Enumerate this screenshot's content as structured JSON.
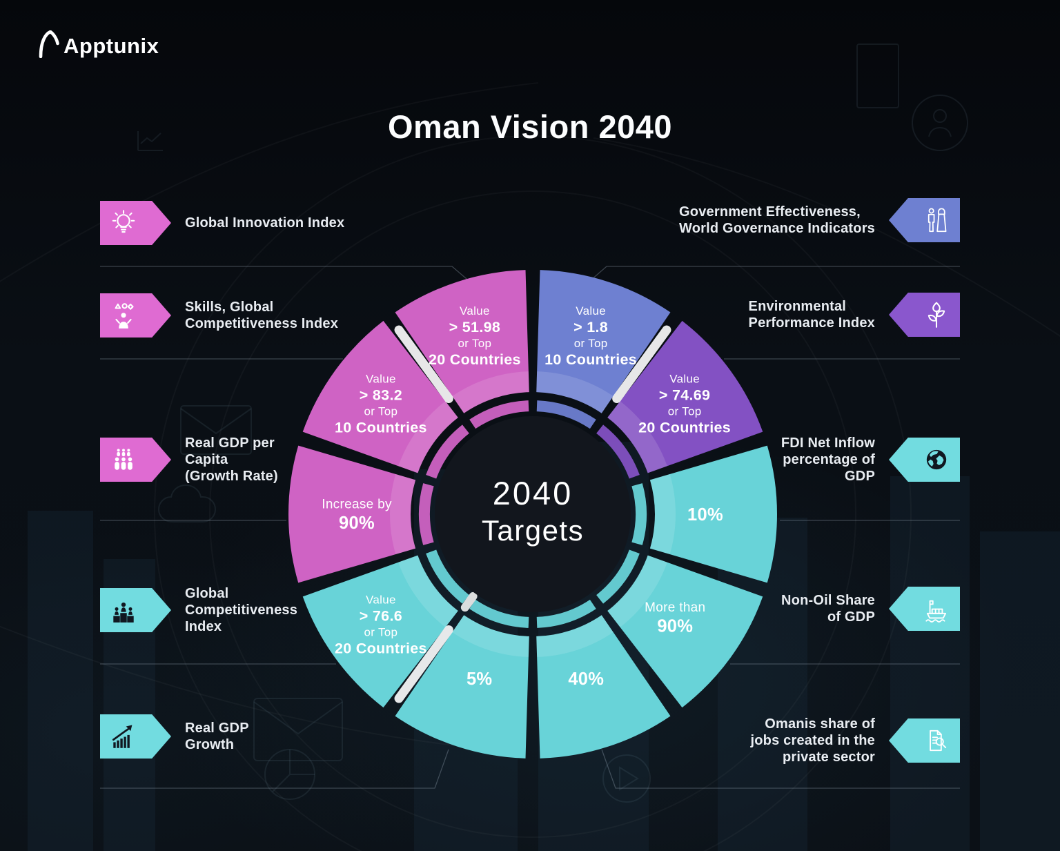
{
  "brand": {
    "logo_text": "Apptunix"
  },
  "title": "Oman Vision 2040",
  "center": {
    "line1": "2040",
    "line2": "Targets"
  },
  "colors": {
    "pink_segment": "#CF63C4",
    "teal_segment": "#68D3D8",
    "blue_segment": "#6E80D1",
    "purple_segment": "#8351C3",
    "badge_pink": "#DF6BD2",
    "badge_teal": "#72DCE0",
    "badge_blue": "#6E80D1",
    "badge_purple": "#8A57CD",
    "background": "#0A0F15",
    "center_circle": "#12161D"
  },
  "indicators": {
    "left": [
      {
        "label": "Global Innovation Index",
        "icon": "lightbulb-icon",
        "color": "#DF6BD2",
        "icon_style": "light"
      },
      {
        "label": "Skills, Global\nCompetitiveness Index",
        "icon": "skills-shapes-icon",
        "color": "#DF6BD2",
        "icon_style": "light"
      },
      {
        "label": "Real GDP per\nCapita\n(Growth Rate)",
        "icon": "people-group-icon",
        "color": "#DF6BD2",
        "icon_style": "light"
      },
      {
        "label": "Global\nCompetitiveness\nIndex",
        "icon": "podium-people-icon",
        "color": "#72DCE0",
        "icon_style": "dark"
      },
      {
        "label": "Real GDP\nGrowth",
        "icon": "growth-chart-icon",
        "color": "#72DCE0",
        "icon_style": "dark"
      }
    ],
    "right": [
      {
        "label": "Government Effectiveness,\nWorld Governance Indicators",
        "icon": "omani-couple-icon",
        "color": "#6E80D1",
        "icon_style": "light"
      },
      {
        "label": "Environmental\nPerformance Index",
        "icon": "plant-icon",
        "color": "#8A57CD",
        "icon_style": "light"
      },
      {
        "label": "FDI Net Inflow\npercentage of\nGDP",
        "icon": "globe-icon",
        "color": "#72DCE0",
        "icon_style": "dark"
      },
      {
        "label": "Non-Oil Share\nof GDP",
        "icon": "ship-icon",
        "color": "#72DCE0",
        "icon_style": "light"
      },
      {
        "label": "Omanis share of\njobs created in the\nprivate sector",
        "icon": "document-search-icon",
        "color": "#72DCE0",
        "icon_style": "light"
      }
    ]
  },
  "chart_data": {
    "type": "pie",
    "subtype": "donut-ring",
    "title": "2040 Targets",
    "legend_position": "around",
    "segments": [
      {
        "indicator": "Government Effectiveness, World Governance Indicators",
        "color": "#6E80D1",
        "start_angle": 0,
        "end_angle": 36,
        "lines": [
          {
            "text": "Value",
            "style": "small"
          },
          {
            "text": "> 1.8",
            "style": "big"
          },
          {
            "text": "or Top",
            "style": "small"
          },
          {
            "text": "10 Countries",
            "style": "big"
          }
        ]
      },
      {
        "indicator": "Environmental Performance Index",
        "color": "#8351C3",
        "start_angle": 36,
        "end_angle": 72,
        "lines": [
          {
            "text": "Value",
            "style": "small"
          },
          {
            "text": "> 74.69",
            "style": "big"
          },
          {
            "text": "or Top",
            "style": "small"
          },
          {
            "text": "20 Countries",
            "style": "big"
          }
        ]
      },
      {
        "indicator": "FDI Net Inflow percentage of GDP",
        "color": "#68D3D8",
        "start_angle": 72,
        "end_angle": 108,
        "lines": [
          {
            "text": "10%",
            "style": "big"
          }
        ]
      },
      {
        "indicator": "Non-Oil Share of GDP",
        "color": "#68D3D8",
        "start_angle": 108,
        "end_angle": 144,
        "lines": [
          {
            "text": "More than",
            "style": "small"
          },
          {
            "text": "90%",
            "style": "big"
          }
        ]
      },
      {
        "indicator": "Omanis share of jobs created in the private sector",
        "color": "#68D3D8",
        "start_angle": 144,
        "end_angle": 180,
        "lines": [
          {
            "text": "40%",
            "style": "big"
          }
        ]
      },
      {
        "indicator": "Real GDP Growth",
        "color": "#68D3D8",
        "start_angle": 180,
        "end_angle": 216,
        "lines": [
          {
            "text": "5%",
            "style": "big"
          }
        ]
      },
      {
        "indicator": "Global Competitiveness Index",
        "color": "#68D3D8",
        "start_angle": 216,
        "end_angle": 252,
        "lines": [
          {
            "text": "Value",
            "style": "small"
          },
          {
            "text": "> 76.6",
            "style": "big"
          },
          {
            "text": "or Top",
            "style": "small"
          },
          {
            "text": "20 Countries",
            "style": "big"
          }
        ]
      },
      {
        "indicator": "Real GDP per Capita (Growth Rate)",
        "color": "#CF63C4",
        "start_angle": 252,
        "end_angle": 288,
        "lines": [
          {
            "text": "Increase by",
            "style": "small"
          },
          {
            "text": "90%",
            "style": "big"
          }
        ]
      },
      {
        "indicator": "Skills, Global Competitiveness Index",
        "color": "#CF63C4",
        "start_angle": 288,
        "end_angle": 324,
        "lines": [
          {
            "text": "Value",
            "style": "small"
          },
          {
            "text": "> 83.2",
            "style": "big"
          },
          {
            "text": "or Top",
            "style": "small"
          },
          {
            "text": "10 Countries",
            "style": "big"
          }
        ]
      },
      {
        "indicator": "Global Innovation Index",
        "color": "#CF63C4",
        "start_angle": 324,
        "end_angle": 360,
        "lines": [
          {
            "text": "Value",
            "style": "small"
          },
          {
            "text": "> 51.98",
            "style": "big"
          },
          {
            "text": "or Top",
            "style": "small"
          },
          {
            "text": "20 Countries",
            "style": "big"
          }
        ]
      }
    ]
  }
}
